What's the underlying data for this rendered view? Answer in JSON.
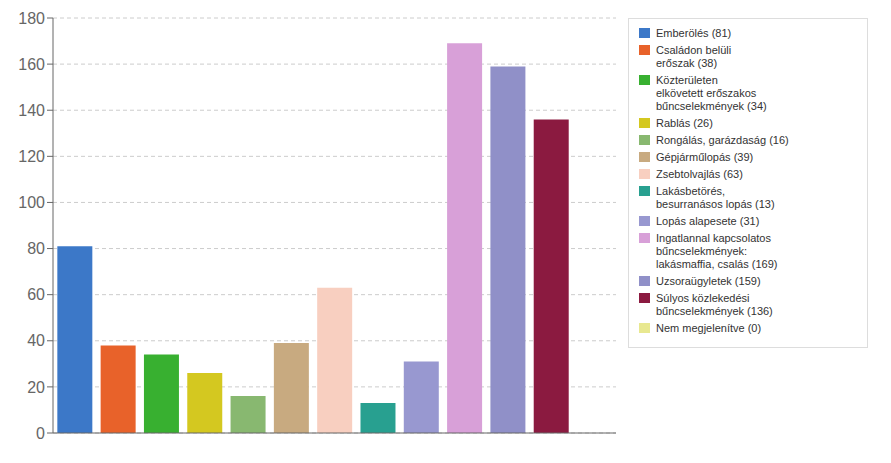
{
  "chart_data": {
    "type": "bar",
    "categories": [
      "Emberölés (81)",
      "Családon belüli\nerőszak (38)",
      "Közterületen\nelkövetett erőszakos\nbűncselekmények (34)",
      "Rablás (26)",
      "Rongálás, garázdaság (16)",
      "Gépjárműlopás (39)",
      "Zsebtolvajlás (63)",
      "Lakásbetörés,\nbesurranásos lopás (13)",
      "Lopás alapesete (31)",
      "Ingatlannal kapcsolatos\nbűncselekmények:\nlakásmaffia, csalás (169)",
      "Uzsoraügyletek (159)",
      "Súlyos közlekedési\nbűncselekmények (136)",
      "Nem megjelenítve (0)"
    ],
    "values": [
      81,
      38,
      34,
      26,
      16,
      39,
      63,
      13,
      31,
      169,
      159,
      136,
      0
    ],
    "colors": [
      "#3c78c8",
      "#e8622a",
      "#38b030",
      "#d4c820",
      "#88b870",
      "#c8aa80",
      "#f8cfc0",
      "#28a090",
      "#9898d0",
      "#d8a0d8",
      "#9090c8",
      "#8b1a40",
      "#e8e890"
    ],
    "ylim": [
      0,
      180
    ],
    "yticks": [
      0,
      20,
      40,
      60,
      80,
      100,
      120,
      140,
      160,
      180
    ],
    "grid": true,
    "legend": "right",
    "tick_labels": "y"
  }
}
